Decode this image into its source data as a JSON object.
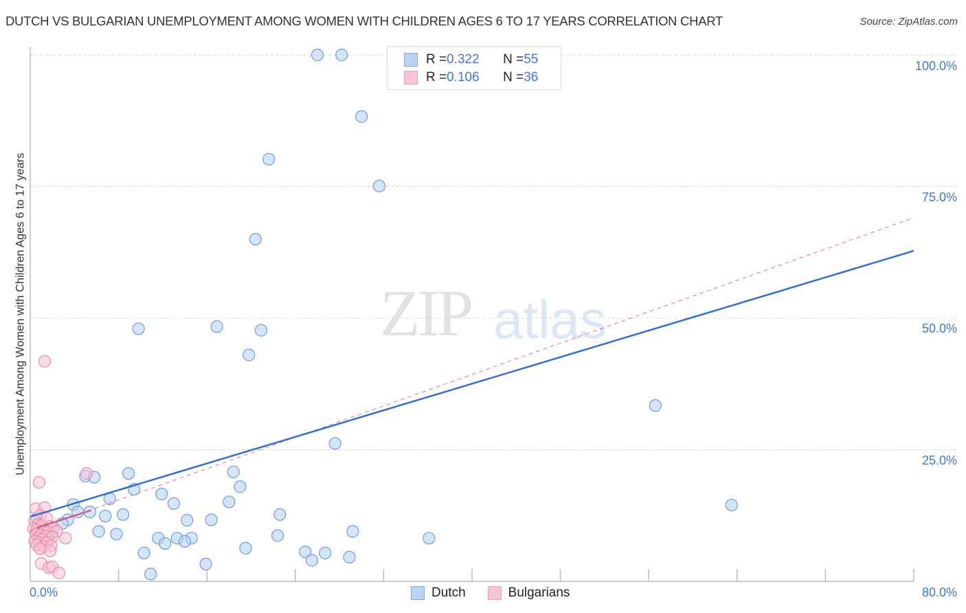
{
  "header": {
    "title": "DUTCH VS BULGARIAN UNEMPLOYMENT AMONG WOMEN WITH CHILDREN AGES 6 TO 17 YEARS CORRELATION CHART",
    "source": "Source: ZipAtlas.com"
  },
  "watermark": {
    "zip": "ZIP",
    "atlas": "atlas"
  },
  "axes": {
    "ylabel": "Unemployment Among Women with Children Ages 6 to 17 years",
    "y_ticks": [
      "100.0%",
      "75.0%",
      "50.0%",
      "25.0%"
    ],
    "x_min_label": "0.0%",
    "x_max_label": "80.0%"
  },
  "legend_top": {
    "rows": [
      {
        "series": "Dutch",
        "r_label": "R = ",
        "r_value": "0.322",
        "n_label": "N = ",
        "n_value": "55"
      },
      {
        "series": "Bulgarians",
        "r_label": "R = ",
        "r_value": "0.106",
        "n_label": "N = ",
        "n_value": "36"
      }
    ]
  },
  "legend_bottom": {
    "items": [
      "Dutch",
      "Bulgarians"
    ]
  },
  "colors": {
    "dutch_fill": "#b8d3f3",
    "dutch_stroke": "#6c9be0",
    "dutch_line": "#2f6fd3",
    "bulgarian_fill": "#f8c3d3",
    "bulgarian_stroke": "#eb8aa8",
    "bulgarian_line": "#e0709a",
    "tick_label": "#3f78d0"
  },
  "chart_data": {
    "type": "scatter",
    "title": "DUTCH VS BULGARIAN UNEMPLOYMENT AMONG WOMEN WITH CHILDREN AGES 6 TO 17 YEARS CORRELATION CHART",
    "xlabel": "",
    "ylabel": "Unemployment Among Women with Children Ages 6 to 17 years",
    "xlim": [
      0,
      80
    ],
    "ylim": [
      0,
      100
    ],
    "x_tick_labels": [
      "0.0%",
      "80.0%"
    ],
    "y_tick_labels": [
      "25.0%",
      "50.0%",
      "75.0%",
      "100.0%"
    ],
    "grid": true,
    "legend_position": "top-center and bottom",
    "series": [
      {
        "name": "Dutch",
        "r": 0.322,
        "n": 55,
        "trend": {
          "x": [
            0,
            80
          ],
          "y": [
            12.3,
            62.8
          ],
          "style": "solid"
        },
        "points": [
          [
            26.0,
            100
          ],
          [
            28.2,
            100
          ],
          [
            30.0,
            88.3
          ],
          [
            21.6,
            80.2
          ],
          [
            31.6,
            75.1
          ],
          [
            20.4,
            65.0
          ],
          [
            9.8,
            48.0
          ],
          [
            16.9,
            48.4
          ],
          [
            20.9,
            47.7
          ],
          [
            19.8,
            43.0
          ],
          [
            56.6,
            33.4
          ],
          [
            27.6,
            26.2
          ],
          [
            63.5,
            14.5
          ],
          [
            5.0,
            20.0
          ],
          [
            5.8,
            19.8
          ],
          [
            8.9,
            20.5
          ],
          [
            18.4,
            20.8
          ],
          [
            9.4,
            17.5
          ],
          [
            19.0,
            18.0
          ],
          [
            11.9,
            16.6
          ],
          [
            7.2,
            15.7
          ],
          [
            18.0,
            15.1
          ],
          [
            3.9,
            14.6
          ],
          [
            13.0,
            14.8
          ],
          [
            5.4,
            13.2
          ],
          [
            4.3,
            13.2
          ],
          [
            6.8,
            12.4
          ],
          [
            8.4,
            12.7
          ],
          [
            22.6,
            12.7
          ],
          [
            3.4,
            11.7
          ],
          [
            14.2,
            11.6
          ],
          [
            16.4,
            11.7
          ],
          [
            2.9,
            11.0
          ],
          [
            6.2,
            9.5
          ],
          [
            7.8,
            9.0
          ],
          [
            29.2,
            9.5
          ],
          [
            22.4,
            8.7
          ],
          [
            36.1,
            8.2
          ],
          [
            11.6,
            8.2
          ],
          [
            13.3,
            8.2
          ],
          [
            14.6,
            8.2
          ],
          [
            14.0,
            7.6
          ],
          [
            12.2,
            7.2
          ],
          [
            10.3,
            5.4
          ],
          [
            19.5,
            6.3
          ],
          [
            24.9,
            5.6
          ],
          [
            26.7,
            5.4
          ],
          [
            28.9,
            4.6
          ],
          [
            25.5,
            4.0
          ],
          [
            15.9,
            3.3
          ],
          [
            10.9,
            1.4
          ],
          [
            0.6,
            12.0
          ],
          [
            1.2,
            10.0
          ],
          [
            2.0,
            9.2
          ],
          [
            1.6,
            8.0
          ]
        ]
      },
      {
        "name": "Bulgarians",
        "r": 0.106,
        "n": 36,
        "trend": {
          "x": [
            0,
            80
          ],
          "y": [
            9.5,
            69.0
          ],
          "style": "dashed"
        },
        "points": [
          [
            1.3,
            41.8
          ],
          [
            0.8,
            18.8
          ],
          [
            5.1,
            20.5
          ],
          [
            0.5,
            13.8
          ],
          [
            1.3,
            14.0
          ],
          [
            0.9,
            12.5
          ],
          [
            1.5,
            12.0
          ],
          [
            0.4,
            11.5
          ],
          [
            0.7,
            10.8
          ],
          [
            1.0,
            10.6
          ],
          [
            1.8,
            10.4
          ],
          [
            2.1,
            10.2
          ],
          [
            0.3,
            10.0
          ],
          [
            0.6,
            9.8
          ],
          [
            1.2,
            9.6
          ],
          [
            1.6,
            9.4
          ],
          [
            2.4,
            9.5
          ],
          [
            0.5,
            9.0
          ],
          [
            0.9,
            8.8
          ],
          [
            1.4,
            8.6
          ],
          [
            2.0,
            8.4
          ],
          [
            0.7,
            8.2
          ],
          [
            1.1,
            8.0
          ],
          [
            3.2,
            8.2
          ],
          [
            0.4,
            7.6
          ],
          [
            0.8,
            7.4
          ],
          [
            1.5,
            7.4
          ],
          [
            0.6,
            6.9
          ],
          [
            1.2,
            6.6
          ],
          [
            1.9,
            6.8
          ],
          [
            0.9,
            6.2
          ],
          [
            1.8,
            5.8
          ],
          [
            1.0,
            3.4
          ],
          [
            1.7,
            2.6
          ],
          [
            2.0,
            2.8
          ],
          [
            2.6,
            1.6
          ]
        ]
      }
    ]
  }
}
